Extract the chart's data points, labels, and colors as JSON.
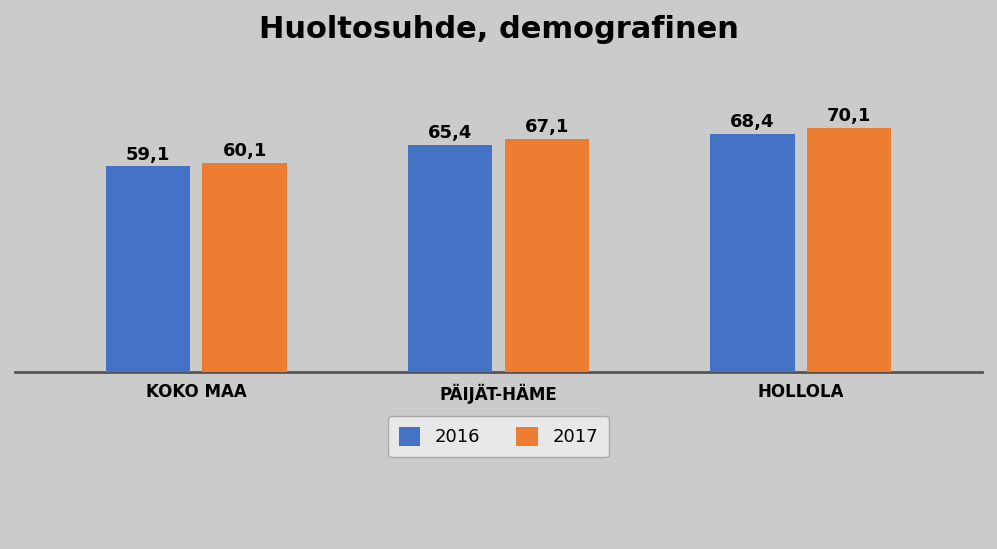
{
  "title": "Huoltosuhde, demografinen",
  "categories": [
    "KOKO MAA",
    "PÄIJÄT-HÄME",
    "HOLLOLA"
  ],
  "series": {
    "2016": [
      59.1,
      65.4,
      68.4
    ],
    "2017": [
      60.1,
      67.1,
      70.1
    ]
  },
  "bar_color_2016": "#4472C4",
  "bar_color_2017": "#ED7D31",
  "background_color": "#CBCBCB",
  "ylim": [
    0,
    90
  ],
  "bar_width": 0.28,
  "title_fontsize": 22,
  "tick_fontsize": 12,
  "legend_fontsize": 13,
  "annotation_fontsize": 13,
  "grid_color": "#FFFFFF",
  "grid_linewidth": 1.2,
  "yticks": [
    0,
    10,
    20,
    30,
    40,
    50,
    60,
    70,
    80,
    90
  ]
}
